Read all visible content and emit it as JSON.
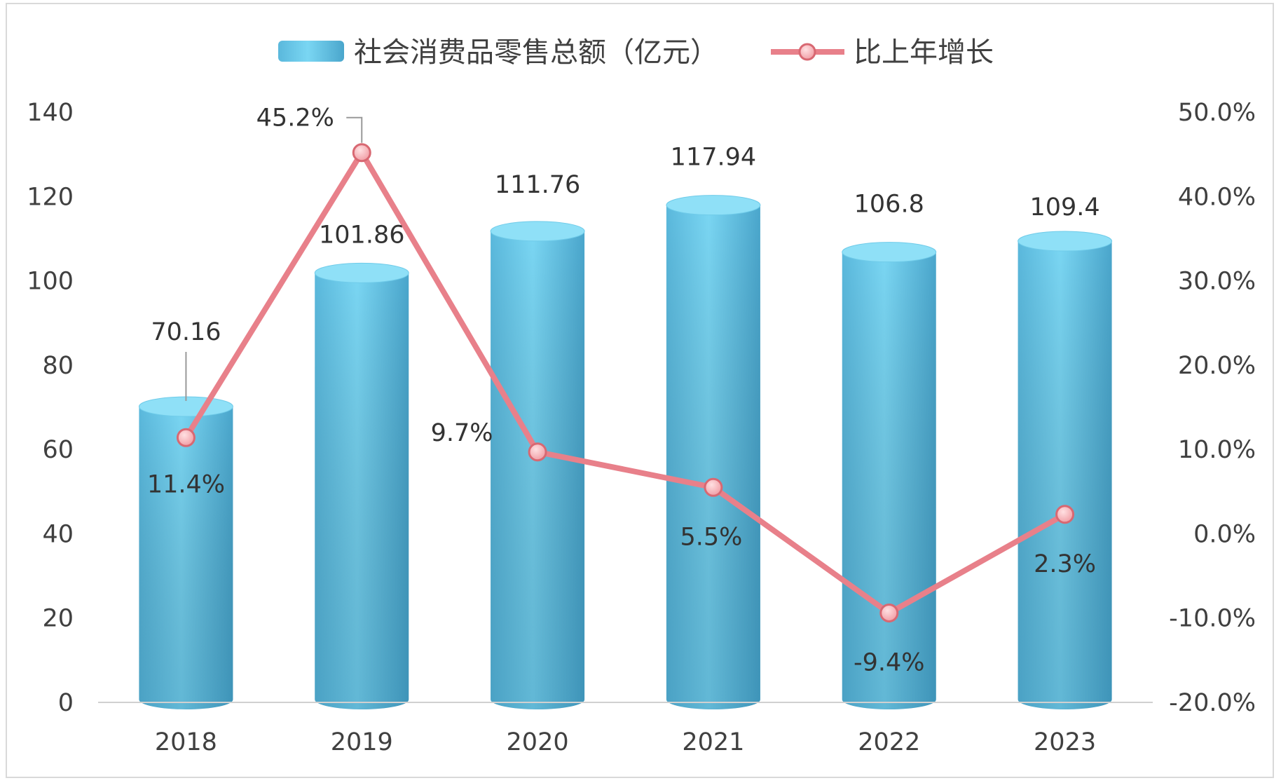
{
  "chart_data": {
    "type": "bar",
    "categories": [
      "2018",
      "2019",
      "2020",
      "2021",
      "2022",
      "2023"
    ],
    "series": [
      {
        "name": "社会消费品零售总额（亿元）",
        "type": "bar",
        "axis": "left",
        "values": [
          70.16,
          101.86,
          111.76,
          117.94,
          106.8,
          109.4
        ],
        "labels": [
          "70.16",
          "101.86",
          "111.76",
          "117.94",
          "106.8",
          "109.4"
        ]
      },
      {
        "name": "比上年增长",
        "type": "line",
        "axis": "right",
        "values": [
          11.4,
          45.2,
          9.7,
          5.5,
          -9.4,
          2.3
        ],
        "labels": [
          "11.4%",
          "45.2%",
          "9.7%",
          "5.5%",
          "-9.4%",
          "2.3%"
        ]
      }
    ],
    "y_left": {
      "ylim": [
        0,
        140
      ],
      "ticks": [
        "0",
        "20",
        "40",
        "60",
        "80",
        "100",
        "120",
        "140"
      ]
    },
    "y_right": {
      "ylim": [
        -20,
        50
      ],
      "ticks": [
        "-20.0%",
        "-10.0%",
        "0.0%",
        "10.0%",
        "20.0%",
        "30.0%",
        "40.0%",
        "50.0%"
      ]
    },
    "legend_position": "top",
    "grid": false,
    "colors": {
      "bar": "#5bc3e6",
      "line": "#e8808a",
      "marker_fill": "#f5b0b5"
    }
  }
}
